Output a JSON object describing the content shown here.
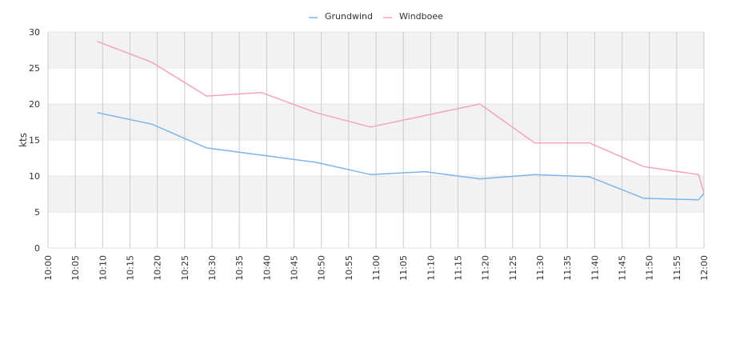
{
  "chart_data": {
    "type": "line",
    "title": "",
    "xlabel": "",
    "ylabel": "kts",
    "ylim": [
      0,
      30
    ],
    "y_ticks": [
      "0",
      "5",
      "10",
      "15",
      "20",
      "25",
      "30"
    ],
    "x_range": [
      "10:00",
      "12:00"
    ],
    "x_ticks": [
      "10:00",
      "10:05",
      "10:10",
      "10:15",
      "10:20",
      "10:25",
      "10:30",
      "10:35",
      "10:40",
      "10:45",
      "10:50",
      "10:55",
      "11:00",
      "11:05",
      "11:10",
      "11:15",
      "11:20",
      "11:25",
      "11:30",
      "11:35",
      "11:40",
      "11:45",
      "11:50",
      "11:55",
      "12:00"
    ],
    "grid": true,
    "legend_position": "top-center",
    "x": [
      "10:09",
      "10:19",
      "10:29",
      "10:39",
      "10:49",
      "10:59",
      "11:09",
      "11:19",
      "11:29",
      "11:39",
      "11:49",
      "11:59",
      "12:00"
    ],
    "series": [
      {
        "name": "Grundwind",
        "color": "#7cb5ec",
        "values": [
          18.8,
          17.2,
          13.9,
          12.9,
          11.9,
          10.2,
          10.6,
          9.6,
          10.2,
          9.9,
          6.9,
          6.7,
          7.6
        ]
      },
      {
        "name": "Windboee",
        "color": "#f7a1c4",
        "values": [
          28.7,
          25.8,
          21.1,
          21.6,
          18.8,
          16.8,
          18.4,
          20.0,
          14.6,
          14.6,
          11.3,
          10.2,
          7.6
        ]
      }
    ]
  },
  "colors": {
    "band": "#f2f2f2",
    "grid_vertical": "#cccccc",
    "grid_horizontal": "#e6e6e6",
    "axis_text": "#333333"
  }
}
